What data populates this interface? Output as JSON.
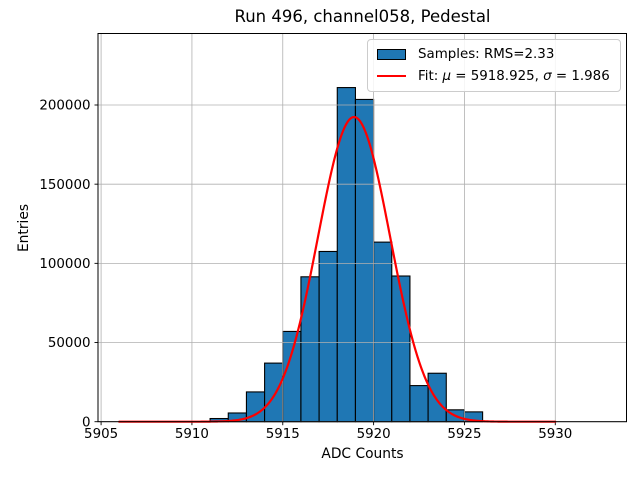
{
  "chart_data": {
    "type": "bar",
    "title": "Run 496, channel058, Pedestal",
    "xlabel": "ADC Counts",
    "ylabel": "Entries",
    "xlim": [
      5904.83,
      5933.92
    ],
    "ylim": [
      0,
      245150
    ],
    "x_ticks": [
      5905,
      5910,
      5915,
      5920,
      5925,
      5930
    ],
    "y_ticks": [
      0,
      50000,
      100000,
      150000,
      200000
    ],
    "grid": true,
    "legend_position": "upper right",
    "histogram": {
      "label": "Samples: RMS=2.33",
      "rms": 2.33,
      "bin_width": 1,
      "bin_left_edges": [
        5911,
        5912,
        5913,
        5914,
        5915,
        5916,
        5917,
        5918,
        5919,
        5920,
        5921,
        5922,
        5923,
        5924,
        5925
      ],
      "counts": [
        2000,
        5500,
        18800,
        37000,
        57000,
        91500,
        107500,
        211000,
        203500,
        113400,
        92000,
        22800,
        30600,
        7500,
        6200
      ],
      "fill_color": "#1f77b4",
      "edge_color": "#000000"
    },
    "fit": {
      "label": "Fit: μ = 5918.925, σ = 1.986",
      "mu": 5918.925,
      "sigma": 1.986,
      "peak_value": 192400,
      "x_range": [
        5906,
        5930
      ],
      "color": "#ff0000"
    },
    "colors": {
      "grid": "#b0b0b0",
      "axes": "#000000",
      "background": "#ffffff"
    }
  },
  "legend": {
    "samples_label": "Samples: RMS=2.33",
    "fit_prefix": "Fit: ",
    "fit_mu_symbol": "μ",
    "fit_mu_value": " = 5918.925, ",
    "fit_sigma_symbol": "σ",
    "fit_sigma_value": " = 1.986"
  }
}
